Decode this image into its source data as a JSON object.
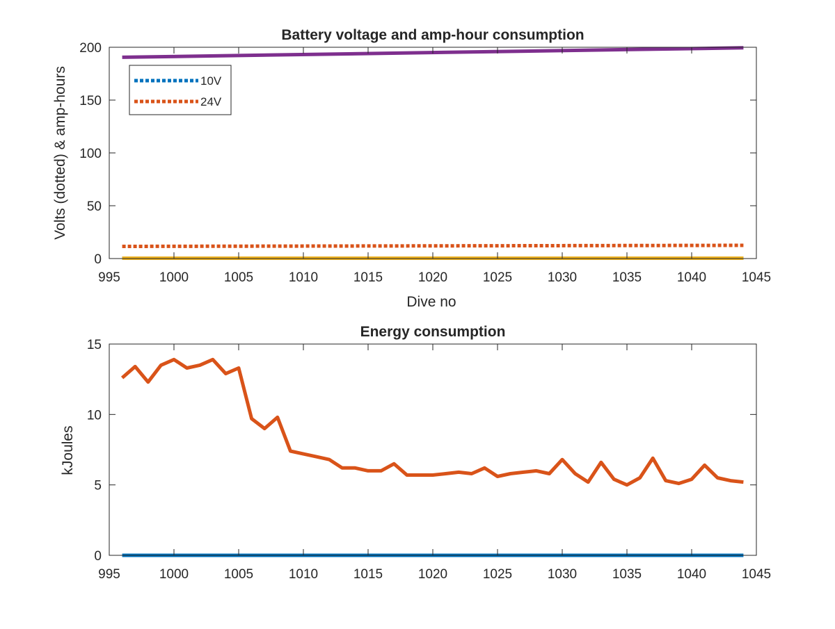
{
  "chart_data": [
    {
      "type": "line",
      "title": "Battery voltage and amp-hour consumption",
      "xlabel": "Dive no",
      "ylabel": "Volts (dotted) & amp-hours",
      "xlim": [
        995,
        1045
      ],
      "ylim": [
        0,
        200
      ],
      "xticks": [
        995,
        1000,
        1005,
        1010,
        1015,
        1020,
        1025,
        1030,
        1035,
        1040,
        1045
      ],
      "yticks": [
        0,
        50,
        100,
        150,
        200
      ],
      "legend_position": "top-left",
      "series": [
        {
          "name": "10V",
          "style": "dotted",
          "color": "#0072BD",
          "x": [
            996,
            1044
          ],
          "y": [
            0.3,
            0.3
          ]
        },
        {
          "name": "24V",
          "style": "dotted",
          "color": "#D95319",
          "x": [
            996,
            1044
          ],
          "y": [
            11.5,
            12.5
          ]
        },
        {
          "style": "solid",
          "color": "#EDB120",
          "x": [
            996,
            1044
          ],
          "y": [
            0.3,
            0.3
          ]
        },
        {
          "style": "solid",
          "color": "#7E2F8E",
          "x": [
            996,
            1044
          ],
          "y": [
            190.5,
            199.5
          ]
        }
      ]
    },
    {
      "type": "line",
      "title": "Energy consumption",
      "xlabel": "",
      "ylabel": "kJoules",
      "xlim": [
        995,
        1045
      ],
      "ylim": [
        0,
        15
      ],
      "xticks": [
        995,
        1000,
        1005,
        1010,
        1015,
        1020,
        1025,
        1030,
        1035,
        1040,
        1045
      ],
      "yticks": [
        0,
        5,
        10,
        15
      ],
      "series": [
        {
          "style": "solid",
          "color": "#D95319",
          "x": [
            996,
            997,
            998,
            999,
            1000,
            1001,
            1002,
            1003,
            1004,
            1005,
            1006,
            1007,
            1008,
            1009,
            1010,
            1011,
            1012,
            1013,
            1014,
            1015,
            1016,
            1017,
            1018,
            1019,
            1020,
            1021,
            1022,
            1023,
            1024,
            1025,
            1026,
            1027,
            1028,
            1029,
            1030,
            1031,
            1032,
            1033,
            1034,
            1035,
            1036,
            1037,
            1038,
            1039,
            1040,
            1041,
            1042,
            1043,
            1044
          ],
          "y": [
            12.6,
            13.4,
            12.3,
            13.5,
            13.9,
            13.3,
            13.5,
            13.9,
            12.9,
            13.3,
            9.7,
            9.0,
            9.8,
            7.4,
            7.2,
            7.0,
            6.8,
            6.2,
            6.2,
            6.0,
            6.0,
            6.5,
            5.7,
            5.7,
            5.7,
            5.8,
            5.9,
            5.8,
            6.2,
            5.6,
            5.8,
            5.9,
            6.0,
            5.8,
            6.8,
            5.8,
            5.2,
            6.6,
            5.4,
            5.0,
            5.5,
            6.9,
            5.3,
            5.1,
            5.4,
            6.4,
            5.5,
            5.3,
            5.2
          ]
        },
        {
          "style": "solid",
          "color": "#0072BD",
          "x": [
            996,
            1044
          ],
          "y": [
            0,
            0
          ]
        }
      ]
    }
  ]
}
